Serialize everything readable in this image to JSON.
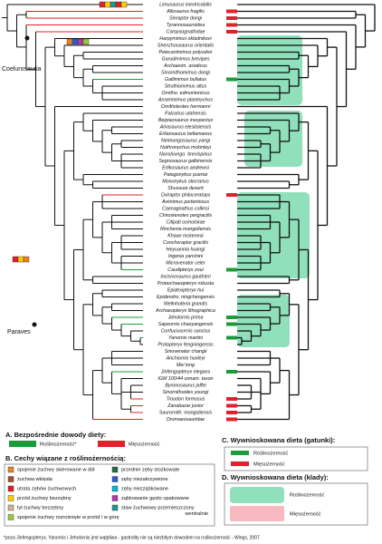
{
  "tree": {
    "taxa": [
      "Limusaurus inextricabilis",
      "Allosaurus fragilis",
      "Sinraptor dongi",
      "Tyrannosauroidea",
      "Compsognathidae",
      "Harpymimus okladnikovi",
      "Shenzhousaurus orientalis",
      "Pelecanimimus polyodon",
      "Garudimimus brevipes",
      "Archaeom. asiaticus",
      "Sinornithomimus dongi",
      "Gallimimus bullatus",
      "Struthiomimus altus",
      "Ornitho. edmontonicus",
      "Anserimimus planinychus",
      "Ornitholestes hermanni",
      "Falcarius utahensis",
      "Beipiaosaurus inexpectus",
      "Alxasaurus elesitaiensis",
      "Erliansaurus bellamanus",
      "Neimongosaurus yangi",
      "Nothronychus mckinleyi",
      "Nanshiungo. brevispinus",
      "Segnosaurus galbinensis",
      "Erlikosaurus andrewsi",
      "Patagonykus puertai",
      "Mononykus olecranus",
      "Shuvuuia deserti",
      "Oviraptor philoceratops",
      "Avimimus portentosus",
      "Caenagnathus collinsi",
      "Chirostenotes pergracilis",
      "Citipati osmolskae",
      "Rinchenia mongoliensis",
      "Khaan mckennai",
      "Conchoraptor gracilis",
      "Heyuannia huangi",
      "Ingenia yanshini",
      "Microvenator celer",
      "Caudipteryx zoui",
      "Incisivosaurus gauthieri",
      "Protarchaeopteryx robusta",
      "Epidexipteryx hui",
      "Epidendro. ningchengensis",
      "Wellnhoferia grandis",
      "Archaeopteryx lithographica",
      "Jeholornis prima",
      "Sapeornis chaoyangensis",
      "Confuciusornis sanctus",
      "Yanornis martini",
      "Protopteryx fengningensis",
      "Sinovenator changii",
      "Anchiornis huxleyi",
      "Mei long",
      "Jinfengopteryx elegans",
      "IGM 100/44 unnam. taxon",
      "Byronosaurus jaffei",
      "Sinornithoides youngi",
      "Troodon formosus",
      "Zanabazar junior",
      "Saurornith. mongoliensis",
      "Dromaeosauridae"
    ],
    "clade_labels": [
      "Coelurosauria",
      "Paraves"
    ]
  },
  "legend_a": {
    "title": "A. Bezpośrednie dowody diety:",
    "items": [
      "Roślinożerność*",
      "Mięsożerność"
    ]
  },
  "legend_b": {
    "title": "B. Cechy wiązane z roślinożernością:",
    "items": [
      "spojenie żuchwy skierowane w dół",
      "żuchwa wklęsła",
      "utrata zębów żuchwowych",
      "przód żuchwy bezzębny",
      "tył żuchwy bezzębny",
      "spojenie żuchwy rozrośnięte w przód i w górę",
      "przednie zęby stożkowate",
      "zęby niezakrzywione",
      "zęby niezząbkowane",
      "ząbkowanie gęsto upakowane",
      "staw żuchwowy przemieszczony",
      "wentralnie"
    ]
  },
  "legend_c": {
    "title": "C. Wywnioskowana dieta (gatunki):",
    "items": [
      "Roślinożerność",
      "Mięsożerność"
    ]
  },
  "legend_d": {
    "title": "D. Wywnioskowana dieta (klady):",
    "items": [
      "Roślinożerność",
      "Mięsożerność"
    ]
  },
  "footnote": "*poza Jinfengopteryx, Yanornis i Jeholornis jest wątpliwa - gastrolity nie są niezbitym dowodem na roślinożerność - Wings, 2007"
}
